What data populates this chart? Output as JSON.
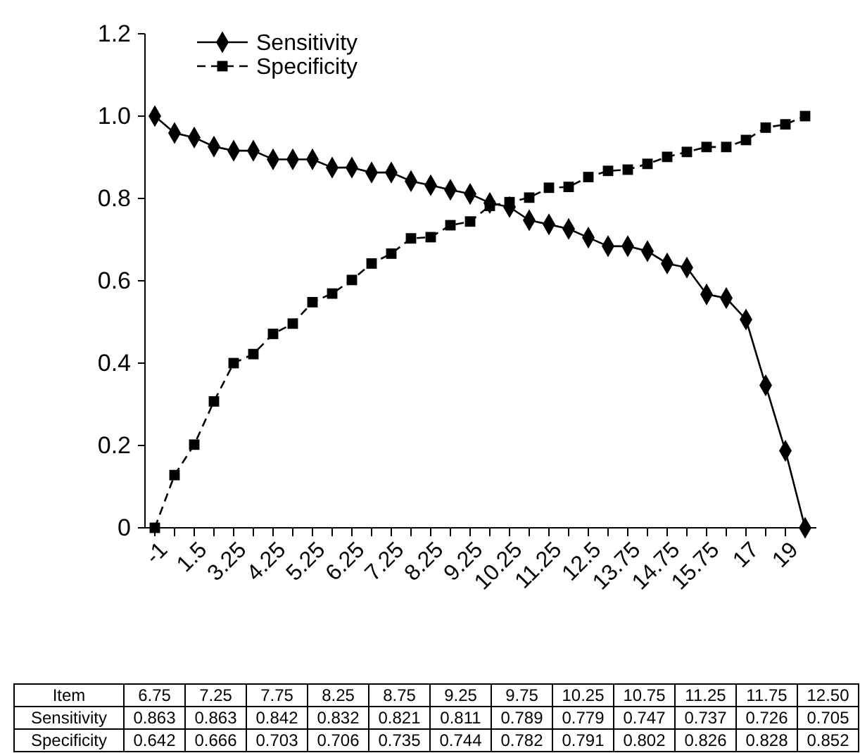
{
  "chart_data": [
    {
      "type": "line",
      "categories": [
        "-1",
        null,
        "1.5",
        null,
        "3.25",
        null,
        "4.25",
        null,
        "5.25",
        null,
        "6.25",
        null,
        "7.25",
        null,
        "8.25",
        null,
        "9.25",
        null,
        "10.25",
        null,
        "11.25",
        null,
        "12.5",
        null,
        "13.75",
        null,
        "14.75",
        null,
        "15.75",
        null,
        "17",
        null,
        "19",
        null
      ],
      "series": [
        {
          "name": "Sensitivity",
          "color": "#000000",
          "marker": "diamond",
          "line_style": "solid",
          "values": [
            1.0,
            0.959,
            0.948,
            0.926,
            0.916,
            0.916,
            0.895,
            0.895,
            0.895,
            0.875,
            0.875,
            0.863,
            0.863,
            0.842,
            0.832,
            0.821,
            0.811,
            0.789,
            0.779,
            0.747,
            0.737,
            0.726,
            0.705,
            0.684,
            0.684,
            0.672,
            0.642,
            0.632,
            0.567,
            0.558,
            0.506,
            0.346,
            0.187,
            0
          ]
        },
        {
          "name": "Specificity",
          "color": "#000000",
          "marker": "square",
          "line_style": "dashed",
          "values": [
            0,
            0.128,
            0.202,
            0.307,
            0.4,
            0.422,
            0.471,
            0.496,
            0.548,
            0.569,
            0.602,
            0.642,
            0.666,
            0.703,
            0.706,
            0.735,
            0.744,
            0.782,
            0.791,
            0.802,
            0.826,
            0.828,
            0.852,
            0.867,
            0.87,
            0.884,
            0.901,
            0.913,
            0.925,
            0.925,
            0.942,
            0.972,
            0.98,
            1.0
          ]
        }
      ],
      "ylim": [
        0,
        1.2
      ],
      "yticks": [
        0,
        {
          "value": 0.2,
          "label": "0.2"
        },
        {
          "value": 0.4,
          "label": "0.4"
        },
        {
          "value": 0.6,
          "label": "0.6"
        },
        {
          "value": 0.8,
          "label": "0.8"
        },
        {
          "value": 1.0,
          "label": "1.0"
        },
        {
          "value": 1.2,
          "label": "1.2"
        }
      ],
      "legend": "top left"
    },
    {
      "type": "heatmap",
      "data_labels": true,
      "annotations": [
        "Item"
      ],
      "categories": [
        "6.75",
        "7.25",
        "7.75",
        "8.25",
        "8.75",
        "9.25",
        "9.75",
        "10.25",
        "10.75",
        "11.25",
        "11.75",
        "12.50"
      ],
      "y_categories": [
        "Sensitivity",
        "Specificity"
      ],
      "cells": [
        [
          0.863,
          0.863,
          0.842,
          0.832,
          0.821,
          0.811,
          0.789,
          0.779,
          0.747,
          0.737,
          0.726,
          0.705
        ],
        [
          0.642,
          0.666,
          0.703,
          0.706,
          0.735,
          0.744,
          0.782,
          0.791,
          0.802,
          0.826,
          0.828,
          0.852
        ]
      ]
    }
  ]
}
